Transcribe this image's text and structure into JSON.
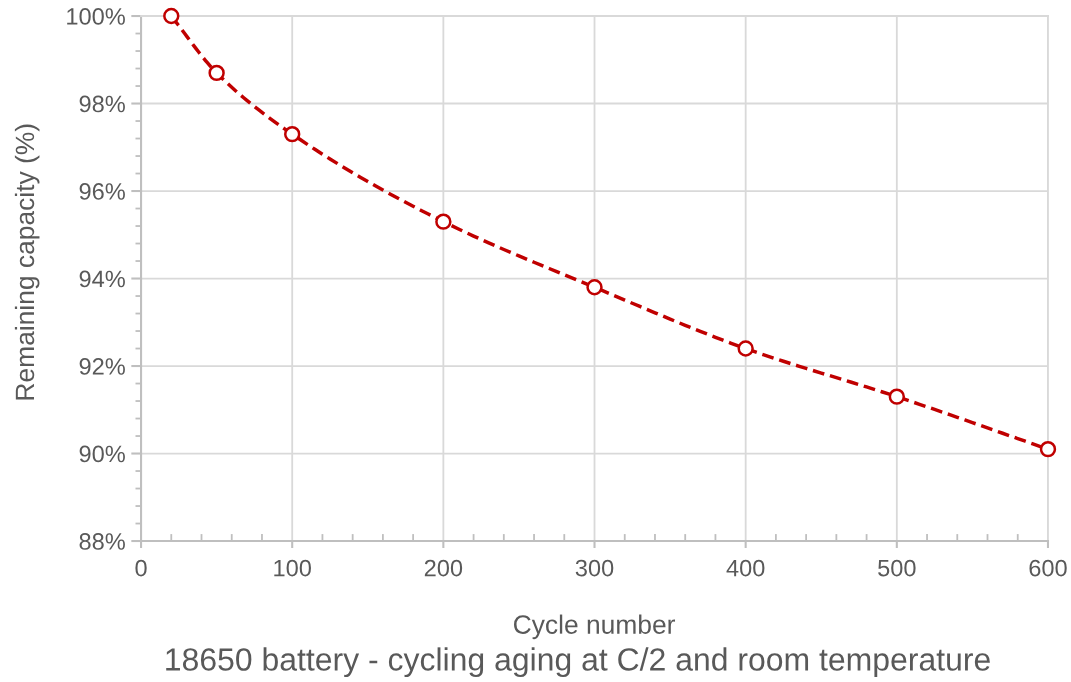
{
  "chart_data": {
    "type": "line",
    "title": "18650 battery - cycling aging at C/2 and room temperature",
    "xlabel": "Cycle number",
    "ylabel": "Remaining capacity (%)",
    "x": [
      20,
      50,
      100,
      200,
      300,
      400,
      500,
      600
    ],
    "series": [
      {
        "color": "#c00000",
        "values": [
          100,
          98.7,
          97.3,
          95.3,
          93.8,
          92.4,
          91.3,
          90.1
        ]
      }
    ],
    "xlim": [
      0,
      600
    ],
    "xticks": [
      0,
      100,
      200,
      300,
      400,
      500,
      600
    ],
    "ylim": [
      88,
      100
    ],
    "yticks": [
      {
        "value": 88,
        "label": "88%"
      },
      {
        "value": 90,
        "label": "90%"
      },
      {
        "value": 92,
        "label": "92%"
      },
      {
        "value": 94,
        "label": "94%"
      },
      {
        "value": 96,
        "label": "96%"
      },
      {
        "value": 98,
        "label": "98%"
      },
      {
        "value": 100,
        "label": "100%"
      }
    ],
    "grid": true,
    "marker": "circle",
    "line_style": "dashed"
  }
}
